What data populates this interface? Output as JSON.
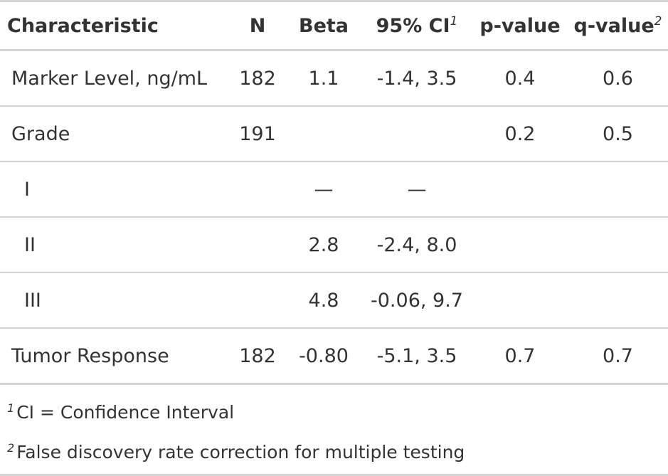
{
  "table": {
    "headers": {
      "characteristic": "Characteristic",
      "n": "N",
      "beta": "Beta",
      "ci": "95% CI",
      "ci_mark": "1",
      "pvalue": "p-value",
      "qvalue": "q-value",
      "qvalue_mark": "2"
    },
    "rows": [
      {
        "label": "Marker Level, ng/mL",
        "n": "182",
        "beta": "1.1",
        "ci": "-1.4, 3.5",
        "p": "0.4",
        "q": "0.6"
      },
      {
        "label": "Grade",
        "n": "191",
        "beta": "",
        "ci": "",
        "p": "0.2",
        "q": "0.5"
      },
      {
        "label": "I",
        "n": "",
        "beta": "—",
        "ci": "—",
        "p": "",
        "q": ""
      },
      {
        "label": "II",
        "n": "",
        "beta": "2.8",
        "ci": "-2.4, 8.0",
        "p": "",
        "q": ""
      },
      {
        "label": "III",
        "n": "",
        "beta": "4.8",
        "ci": "-0.06, 9.7",
        "p": "",
        "q": ""
      },
      {
        "label": "Tumor Response",
        "n": "182",
        "beta": "-0.80",
        "ci": "-5.1, 3.5",
        "p": "0.7",
        "q": "0.7"
      }
    ]
  },
  "footnotes": [
    {
      "mark": "1",
      "text": "CI = Confidence Interval"
    },
    {
      "mark": "2",
      "text": "False discovery rate correction for multiple testing"
    }
  ]
}
